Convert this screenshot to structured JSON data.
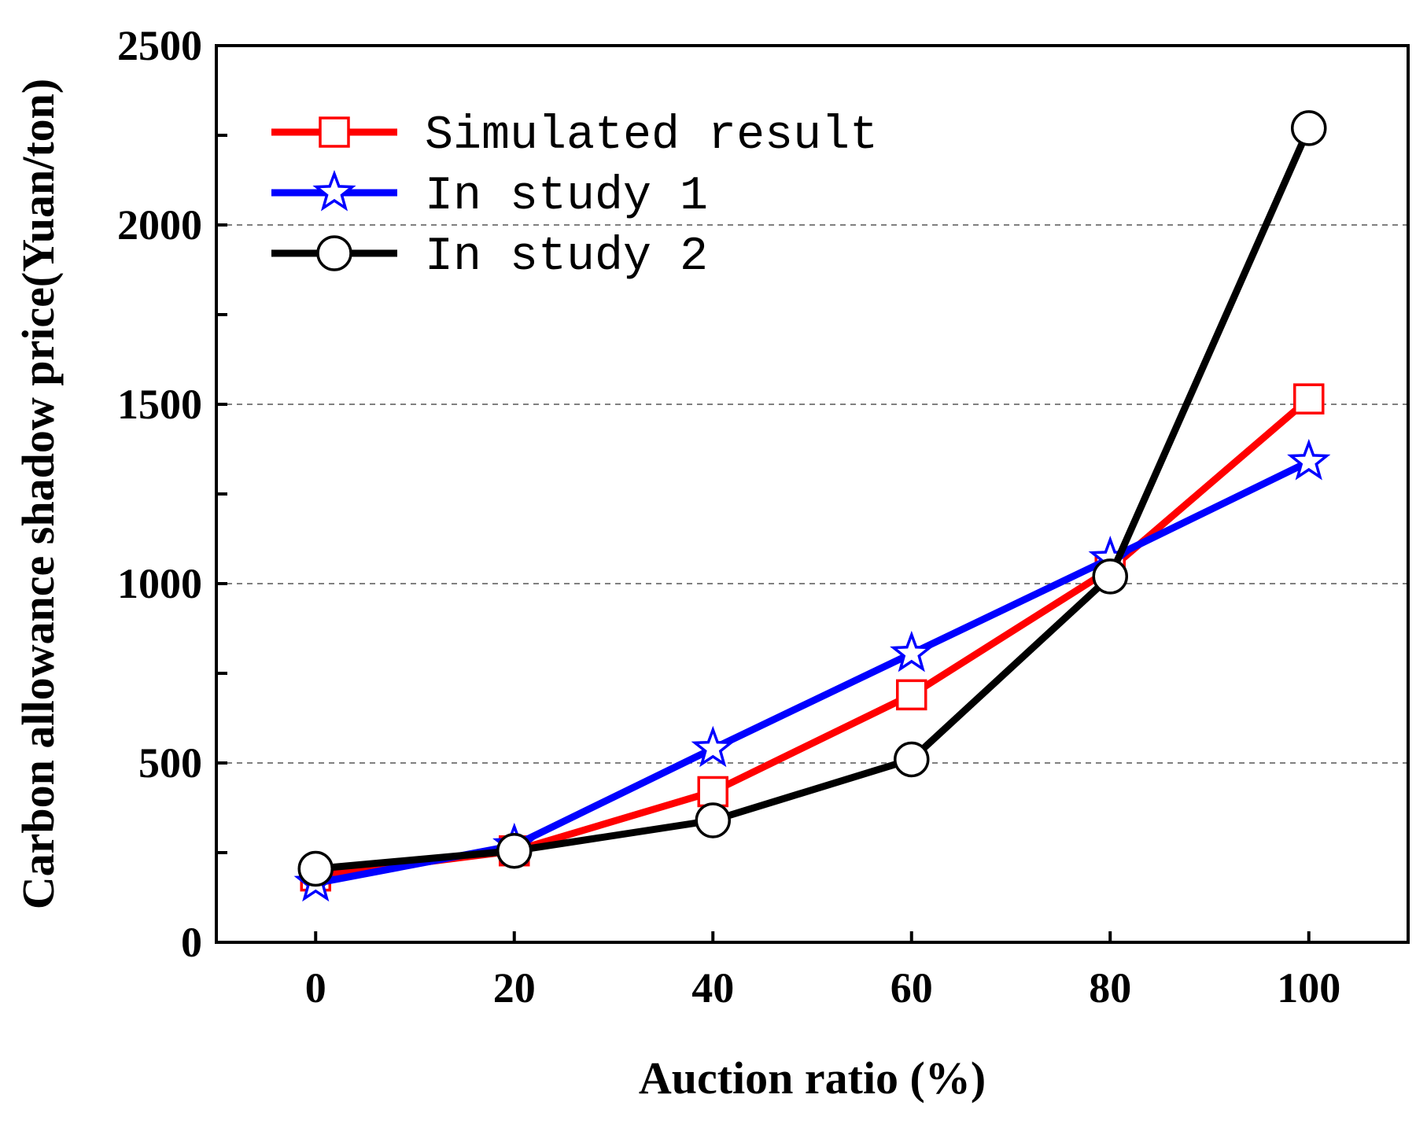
{
  "chart_data": {
    "type": "line",
    "title": "",
    "xlabel": "Auction ratio (%)",
    "ylabel": "Carbon allowance shadow price(Yuan/ton)",
    "x": [
      0,
      20,
      40,
      60,
      80,
      100
    ],
    "x_ticks": [
      "0",
      "20",
      "40",
      "60",
      "80",
      "100"
    ],
    "y_ticks": [
      "0",
      "500",
      "1000",
      "1500",
      "2000",
      "2500"
    ],
    "xlim": [
      -10,
      110
    ],
    "ylim": [
      0,
      2500
    ],
    "grid": "horizontal dashed",
    "legend_position": "top-left",
    "series": [
      {
        "name": "Simulated result",
        "color": "#ff0000",
        "marker": "square",
        "values": [
          185,
          255,
          420,
          690,
          1040,
          1515
        ]
      },
      {
        "name": "In study 1",
        "color": "#0000ff",
        "marker": "star",
        "values": [
          165,
          270,
          540,
          805,
          1070,
          1340
        ]
      },
      {
        "name": "In study 2",
        "color": "#000000",
        "marker": "circle",
        "values": [
          205,
          255,
          340,
          510,
          1020,
          2270
        ]
      }
    ]
  }
}
